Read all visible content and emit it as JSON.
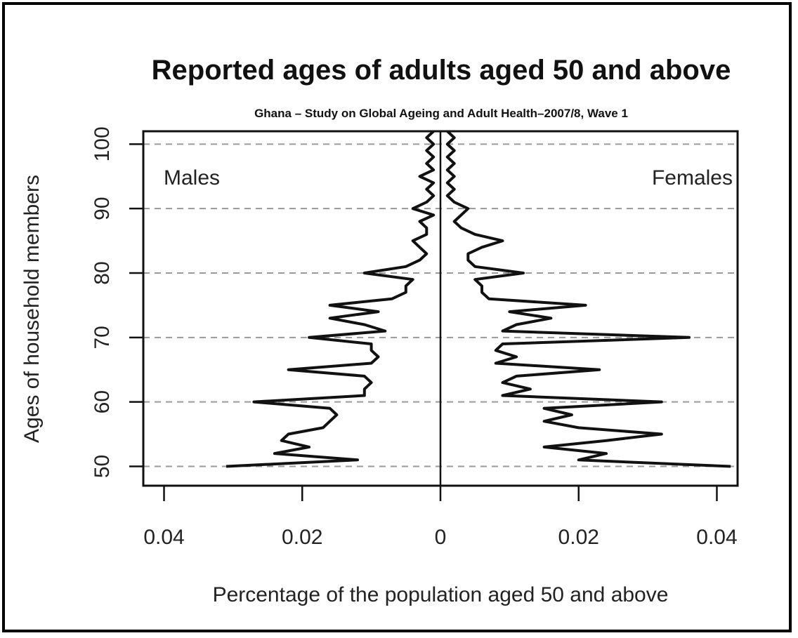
{
  "chart_data": {
    "type": "line",
    "title": "Reported ages of adults aged 50 and above",
    "subtitle": "Ghana – Study on Global Ageing and Adult Health–2007/8, Wave 1",
    "xlabel": "Percentage of the population aged 50 and above",
    "ylabel": "Ages  of household members",
    "x_tick_labels": [
      "0.04",
      "0.02",
      "0",
      "0.02",
      "0.04"
    ],
    "x_tick_values": [
      -0.04,
      -0.02,
      0,
      0.02,
      0.04
    ],
    "y_ticks": [
      50,
      60,
      70,
      80,
      90,
      100
    ],
    "xlim": [
      -0.043,
      0.043
    ],
    "ylim": [
      47,
      102
    ],
    "grid": "dashed horizontal at y ticks",
    "annotations": {
      "left": "Males",
      "right": "Females"
    },
    "colors": {
      "line": "#111111",
      "grid": "#9a9a9a"
    },
    "series": [
      {
        "name": "Males",
        "side": "left",
        "ages": [
          50,
          51,
          52,
          53,
          54,
          55,
          56,
          57,
          58,
          59,
          60,
          61,
          62,
          63,
          64,
          65,
          66,
          67,
          68,
          69,
          70,
          71,
          72,
          73,
          74,
          75,
          76,
          77,
          78,
          79,
          80,
          81,
          82,
          83,
          84,
          85,
          86,
          87,
          88,
          89,
          90,
          91,
          92,
          93,
          94,
          95,
          96,
          97,
          98,
          99,
          100,
          101,
          102
        ],
        "values": [
          0.031,
          0.012,
          0.024,
          0.019,
          0.023,
          0.022,
          0.017,
          0.016,
          0.015,
          0.016,
          0.027,
          0.011,
          0.011,
          0.01,
          0.011,
          0.022,
          0.01,
          0.009,
          0.01,
          0.01,
          0.019,
          0.008,
          0.011,
          0.016,
          0.009,
          0.016,
          0.007,
          0.005,
          0.005,
          0.004,
          0.011,
          0.005,
          0.003,
          0.002,
          0.003,
          0.004,
          0.002,
          0.002,
          0.003,
          0.001,
          0.004,
          0.002,
          0.001,
          0.002,
          0.001,
          0.003,
          0.001,
          0.002,
          0.001,
          0.002,
          0.001,
          0.002,
          0.001
        ]
      },
      {
        "name": "Females",
        "side": "right",
        "ages": [
          50,
          51,
          52,
          53,
          54,
          55,
          56,
          57,
          58,
          59,
          60,
          61,
          62,
          63,
          64,
          65,
          66,
          67,
          68,
          69,
          70,
          71,
          72,
          73,
          74,
          75,
          76,
          77,
          78,
          79,
          80,
          81,
          82,
          83,
          84,
          85,
          86,
          87,
          88,
          89,
          90,
          91,
          92,
          93,
          94,
          95,
          96,
          97,
          98,
          99,
          100,
          101,
          102
        ],
        "values": [
          0.042,
          0.02,
          0.024,
          0.015,
          0.024,
          0.032,
          0.02,
          0.015,
          0.019,
          0.015,
          0.032,
          0.009,
          0.013,
          0.009,
          0.011,
          0.023,
          0.008,
          0.011,
          0.008,
          0.009,
          0.036,
          0.009,
          0.011,
          0.016,
          0.01,
          0.021,
          0.007,
          0.006,
          0.006,
          0.005,
          0.012,
          0.005,
          0.004,
          0.004,
          0.006,
          0.009,
          0.005,
          0.003,
          0.002,
          0.003,
          0.004,
          0.002,
          0.001,
          0.002,
          0.001,
          0.002,
          0.001,
          0.002,
          0.001,
          0.002,
          0.001,
          0.002,
          0.001
        ]
      }
    ]
  }
}
